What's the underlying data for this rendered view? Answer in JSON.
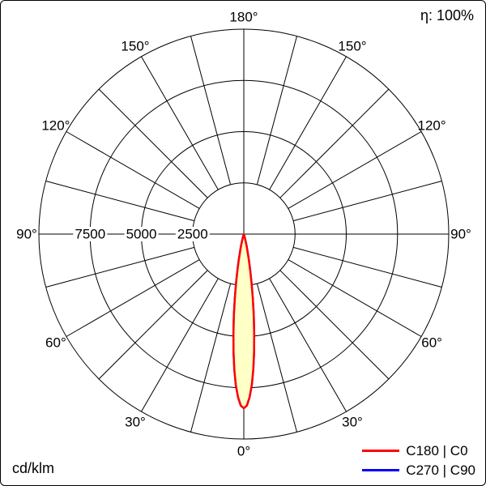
{
  "page": {
    "efficiency_label": "η: 100%",
    "units_label": "cd/klm"
  },
  "chart_data": {
    "type": "polar-line",
    "description": "Luminous intensity distribution curve, 0° at bottom (nadir), values in cd/klm",
    "units": "cd/klm",
    "max_value": 10000,
    "ring_values": [
      2500,
      5000,
      7500,
      10000
    ],
    "ring_axis_labels": [
      "7500",
      "5000",
      "2500"
    ],
    "spoke_step_deg": 15,
    "grid_color": "#000000",
    "angle_labels": [
      {
        "pos_deg_from_top": 0,
        "label": "180°"
      },
      {
        "pos_deg_from_top": 30,
        "label": "150°"
      },
      {
        "pos_deg_from_top": 60,
        "label": "120°"
      },
      {
        "pos_deg_from_top": 90,
        "label": "90°"
      },
      {
        "pos_deg_from_top": 120,
        "label": "60°"
      },
      {
        "pos_deg_from_top": 150,
        "label": "30°"
      },
      {
        "pos_deg_from_top": 180,
        "label": "0°"
      },
      {
        "pos_deg_from_top": 210,
        "label": "30°"
      },
      {
        "pos_deg_from_top": 240,
        "label": "60°"
      },
      {
        "pos_deg_from_top": 270,
        "label": "90°"
      },
      {
        "pos_deg_from_top": 300,
        "label": "120°"
      },
      {
        "pos_deg_from_top": 330,
        "label": "150°"
      }
    ],
    "series": [
      {
        "name": "C180 | C0",
        "color": "#ff0000",
        "fill": "#ffffc8",
        "gamma_deg": [
          0,
          1,
          2,
          3,
          4,
          5,
          6,
          7,
          8,
          9,
          10,
          11,
          12,
          13,
          14,
          15,
          16,
          17,
          18,
          19,
          20
        ],
        "values_cd_klm": [
          8500,
          8370,
          7980,
          7390,
          6620,
          5750,
          4840,
          3950,
          3130,
          2400,
          1780,
          1280,
          900,
          610,
          400,
          250,
          160,
          95,
          55,
          30,
          15
        ]
      },
      {
        "name": "C270 | C90",
        "color": "#0000ff",
        "fill": "none",
        "gamma_deg": [
          0,
          1,
          2,
          3,
          4,
          5,
          6,
          7,
          8,
          9,
          10,
          11,
          12,
          13,
          14,
          15,
          16,
          17,
          18,
          19,
          20
        ],
        "values_cd_klm": [
          8500,
          8370,
          7980,
          7390,
          6620,
          5750,
          4840,
          3950,
          3130,
          2400,
          1780,
          1280,
          900,
          610,
          400,
          250,
          160,
          95,
          55,
          30,
          15
        ]
      }
    ]
  }
}
